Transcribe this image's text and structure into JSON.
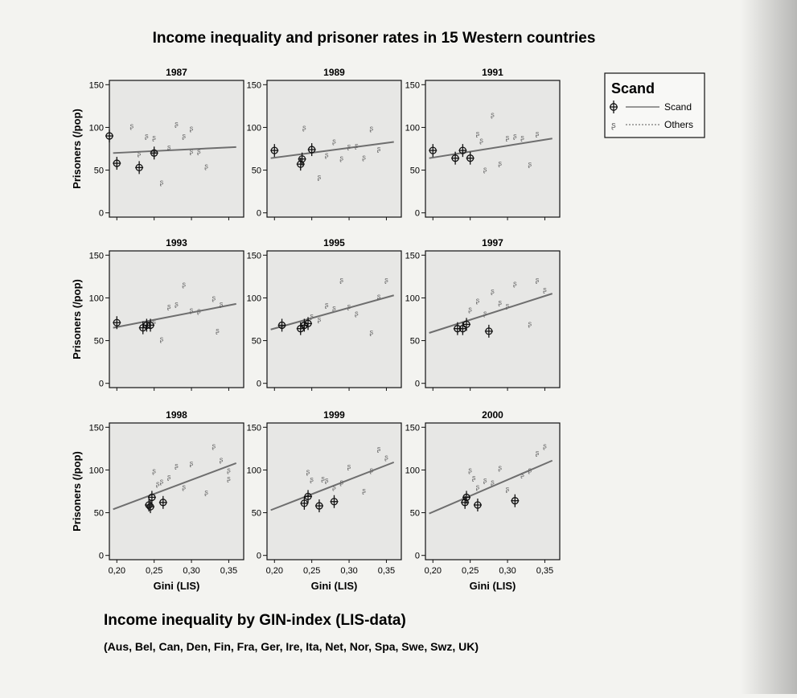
{
  "figure": {
    "title": "Income inequality and prisoner rates in 15 Western countries",
    "footer_title": "Income inequality by GIN-index (LIS-data)",
    "footer_subtitle": "(Aus, Bel, Can, Den, Fin, Fra, Ger, Ire, Ita, Net, Nor, Spa, Swe, Swz, UK)",
    "ylabel": "Prisoners (/pop)",
    "xlabel": "Gini (LIS)",
    "legend": {
      "title": "Scand",
      "entries": [
        "Scand",
        "Others"
      ]
    }
  },
  "chart_data": [
    {
      "type": "scatter",
      "title": "1987",
      "xlabel": "",
      "ylabel": "Prisoners (/pop)",
      "xlim": [
        0.19,
        0.37
      ],
      "ylim": [
        -5,
        155
      ],
      "yticks": [
        0,
        50,
        100,
        150
      ],
      "series": [
        {
          "name": "Scand",
          "x": [
            0.19,
            0.2,
            0.23,
            0.25
          ],
          "y": [
            90,
            58,
            53,
            70
          ]
        },
        {
          "name": "Others",
          "x": [
            0.22,
            0.23,
            0.24,
            0.25,
            0.25,
            0.26,
            0.27,
            0.28,
            0.29,
            0.3,
            0.3,
            0.31,
            0.32
          ],
          "y": [
            102,
            70,
            90,
            88,
            72,
            36,
            77,
            104,
            90,
            72,
            99,
            72,
            55
          ]
        }
      ],
      "fit_line": {
        "x": [
          0.195,
          0.36
        ],
        "y": [
          70,
          77
        ]
      }
    },
    {
      "type": "scatter",
      "title": "1989",
      "xlabel": "",
      "ylabel": "",
      "xlim": [
        0.19,
        0.37
      ],
      "ylim": [
        -5,
        155
      ],
      "yticks": [
        0,
        50,
        100,
        150
      ],
      "series": [
        {
          "name": "Scand",
          "x": [
            0.2,
            0.235,
            0.237,
            0.25
          ],
          "y": [
            73,
            57,
            63,
            74
          ]
        },
        {
          "name": "Others",
          "x": [
            0.24,
            0.26,
            0.27,
            0.28,
            0.29,
            0.3,
            0.31,
            0.32,
            0.33,
            0.34
          ],
          "y": [
            100,
            42,
            68,
            84,
            64,
            78,
            79,
            65,
            99,
            75
          ]
        }
      ],
      "fit_line": {
        "x": [
          0.195,
          0.36
        ],
        "y": [
          64,
          83
        ]
      }
    },
    {
      "type": "scatter",
      "title": "1991",
      "xlabel": "",
      "ylabel": "",
      "xlim": [
        0.19,
        0.37
      ],
      "ylim": [
        -5,
        155
      ],
      "yticks": [
        0,
        50,
        100,
        150
      ],
      "series": [
        {
          "name": "Scand",
          "x": [
            0.2,
            0.23,
            0.24,
            0.25
          ],
          "y": [
            73,
            64,
            73,
            64
          ]
        },
        {
          "name": "Others",
          "x": [
            0.26,
            0.265,
            0.27,
            0.28,
            0.29,
            0.3,
            0.31,
            0.32,
            0.33,
            0.34
          ],
          "y": [
            93,
            85,
            51,
            115,
            58,
            88,
            90,
            88,
            57,
            93
          ]
        }
      ],
      "fit_line": {
        "x": [
          0.195,
          0.36
        ],
        "y": [
          64,
          87
        ]
      }
    },
    {
      "type": "scatter",
      "title": "1993",
      "xlabel": "",
      "ylabel": "Prisoners (/pop)",
      "xlim": [
        0.19,
        0.37
      ],
      "ylim": [
        -5,
        155
      ],
      "yticks": [
        0,
        50,
        100,
        150
      ],
      "series": [
        {
          "name": "Scand",
          "x": [
            0.2,
            0.235,
            0.24,
            0.245
          ],
          "y": [
            71,
            65,
            68,
            68
          ]
        },
        {
          "name": "Others",
          "x": [
            0.25,
            0.26,
            0.27,
            0.28,
            0.29,
            0.3,
            0.31,
            0.33,
            0.335,
            0.34
          ],
          "y": [
            72,
            52,
            90,
            93,
            116,
            86,
            85,
            100,
            62,
            93
          ]
        }
      ],
      "fit_line": {
        "x": [
          0.195,
          0.36
        ],
        "y": [
          65,
          93
        ]
      }
    },
    {
      "type": "scatter",
      "title": "1995",
      "xlabel": "",
      "ylabel": "",
      "xlim": [
        0.19,
        0.37
      ],
      "ylim": [
        -5,
        155
      ],
      "yticks": [
        0,
        50,
        100,
        150
      ],
      "series": [
        {
          "name": "Scand",
          "x": [
            0.21,
            0.235,
            0.24,
            0.245
          ],
          "y": [
            68,
            64,
            68,
            70
          ]
        },
        {
          "name": "Others",
          "x": [
            0.25,
            0.26,
            0.27,
            0.28,
            0.29,
            0.3,
            0.31,
            0.33,
            0.34,
            0.35
          ],
          "y": [
            79,
            75,
            92,
            88,
            121,
            90,
            82,
            60,
            102,
            121
          ]
        }
      ],
      "fit_line": {
        "x": [
          0.195,
          0.36
        ],
        "y": [
          63,
          103
        ]
      }
    },
    {
      "type": "scatter",
      "title": "1997",
      "xlabel": "",
      "ylabel": "",
      "xlim": [
        0.19,
        0.37
      ],
      "ylim": [
        -5,
        155
      ],
      "yticks": [
        0,
        50,
        100,
        150
      ],
      "series": [
        {
          "name": "Scand",
          "x": [
            0.233,
            0.24,
            0.245,
            0.275
          ],
          "y": [
            64,
            64,
            69,
            61
          ]
        },
        {
          "name": "Others",
          "x": [
            0.25,
            0.26,
            0.27,
            0.28,
            0.29,
            0.3,
            0.31,
            0.33,
            0.34,
            0.35
          ],
          "y": [
            87,
            97,
            82,
            108,
            95,
            91,
            117,
            70,
            121,
            110
          ]
        }
      ],
      "fit_line": {
        "x": [
          0.195,
          0.36
        ],
        "y": [
          59,
          105
        ]
      }
    },
    {
      "type": "scatter",
      "title": "1998",
      "xlabel": "Gini (LIS)",
      "ylabel": "Prisoners (/pop)",
      "xlim": [
        0.19,
        0.37
      ],
      "ylim": [
        -5,
        155
      ],
      "yticks": [
        0,
        50,
        100,
        150
      ],
      "xticks": [
        "0,20",
        "0,25",
        "0,30",
        "0,35"
      ],
      "series": [
        {
          "name": "Scand",
          "x": [
            0.243,
            0.245,
            0.247,
            0.262
          ],
          "y": [
            59,
            57,
            68,
            62
          ]
        },
        {
          "name": "Others",
          "x": [
            0.25,
            0.255,
            0.26,
            0.27,
            0.28,
            0.29,
            0.3,
            0.32,
            0.33,
            0.34,
            0.35,
            0.35
          ],
          "y": [
            99,
            84,
            87,
            92,
            105,
            80,
            108,
            74,
            128,
            112,
            90,
            100
          ]
        }
      ],
      "fit_line": {
        "x": [
          0.195,
          0.36
        ],
        "y": [
          54,
          108
        ]
      }
    },
    {
      "type": "scatter",
      "title": "1999",
      "xlabel": "Gini (LIS)",
      "ylabel": "",
      "xlim": [
        0.19,
        0.37
      ],
      "ylim": [
        -5,
        155
      ],
      "yticks": [
        0,
        50,
        100,
        150
      ],
      "xticks": [
        "0,20",
        "0,25",
        "0,30",
        "0,35"
      ],
      "series": [
        {
          "name": "Scand",
          "x": [
            0.24,
            0.245,
            0.26,
            0.28
          ],
          "y": [
            61,
            69,
            58,
            63
          ]
        },
        {
          "name": "Others",
          "x": [
            0.245,
            0.25,
            0.265,
            0.27,
            0.28,
            0.29,
            0.3,
            0.32,
            0.33,
            0.34,
            0.35
          ],
          "y": [
            98,
            89,
            90,
            88,
            80,
            86,
            104,
            76,
            100,
            125,
            115
          ]
        }
      ],
      "fit_line": {
        "x": [
          0.195,
          0.36
        ],
        "y": [
          53,
          109
        ]
      }
    },
    {
      "type": "scatter",
      "title": "2000",
      "xlabel": "Gini (LIS)",
      "ylabel": "",
      "xlim": [
        0.19,
        0.37
      ],
      "ylim": [
        -5,
        155
      ],
      "yticks": [
        0,
        50,
        100,
        150
      ],
      "xticks": [
        "0,20",
        "0,25",
        "0,30",
        "0,35"
      ],
      "series": [
        {
          "name": "Scand",
          "x": [
            0.243,
            0.245,
            0.26,
            0.31
          ],
          "y": [
            62,
            68,
            59,
            64
          ]
        },
        {
          "name": "Others",
          "x": [
            0.25,
            0.255,
            0.26,
            0.27,
            0.28,
            0.29,
            0.3,
            0.32,
            0.33,
            0.34,
            0.35
          ],
          "y": [
            100,
            91,
            80,
            88,
            86,
            103,
            78,
            95,
            100,
            120,
            128
          ]
        }
      ],
      "fit_line": {
        "x": [
          0.195,
          0.36
        ],
        "y": [
          49,
          111
        ]
      }
    }
  ]
}
